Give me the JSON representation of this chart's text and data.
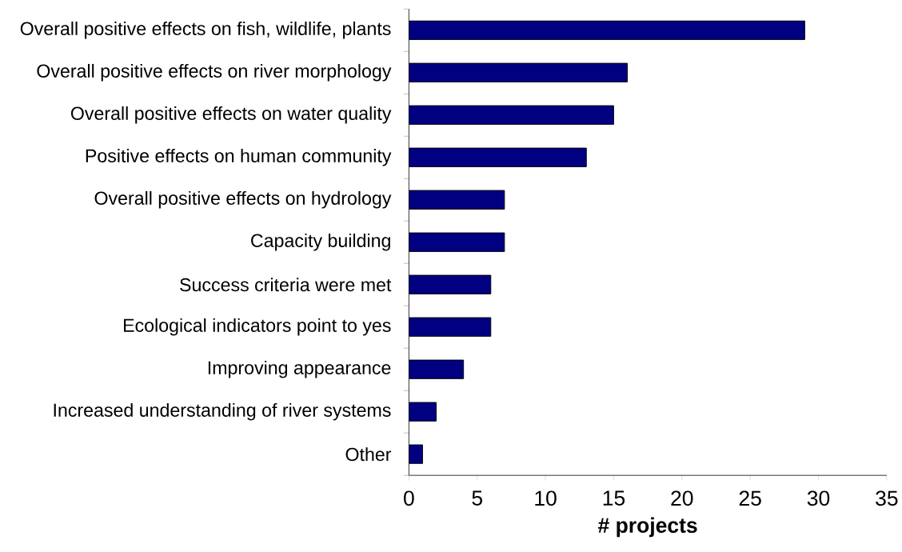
{
  "chart_data": {
    "type": "bar",
    "orientation": "horizontal",
    "categories": [
      "Overall positive effects on fish, wildlife, plants",
      "Overall positive effects on river morphology",
      "Overall positive effects on water quality",
      "Positive effects on human community",
      "Overall positive effects on hydrology",
      "Capacity building",
      "Success criteria were met",
      "Ecological indicators point to yes",
      "Improving appearance",
      "Increased understanding of river systems",
      "Other"
    ],
    "values": [
      29,
      16,
      15,
      13,
      7,
      7,
      6,
      6,
      4,
      2,
      1
    ],
    "color": "#000080",
    "xlim": [
      0,
      35
    ],
    "xticks": [
      0,
      5,
      10,
      15,
      20,
      25,
      30,
      35
    ],
    "xlabel": "# projects",
    "grid": false
  }
}
